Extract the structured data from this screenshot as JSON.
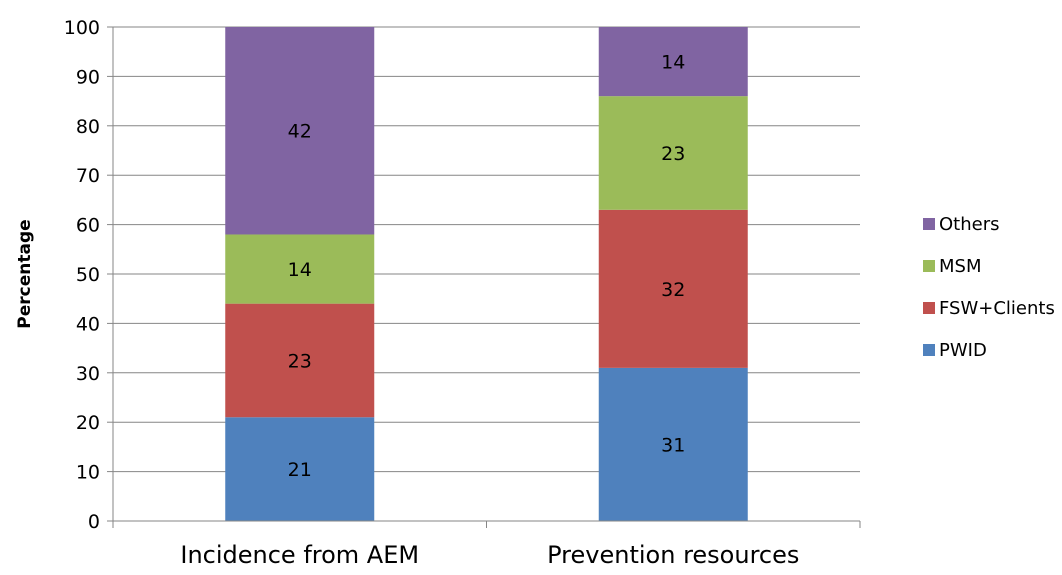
{
  "chart_data": {
    "type": "bar",
    "stacked": true,
    "categories": [
      "Incidence from AEM",
      "Prevention resources"
    ],
    "series": [
      {
        "name": "PWID",
        "color": "#4f81bd",
        "values": [
          21,
          31
        ]
      },
      {
        "name": "FSW+Clients",
        "color": "#c0504d",
        "values": [
          23,
          32
        ]
      },
      {
        "name": "MSM",
        "color": "#9bbb59",
        "values": [
          14,
          23
        ]
      },
      {
        "name": "Others",
        "color": "#8064a2",
        "values": [
          42,
          14
        ]
      }
    ],
    "ylabel": "Percentage",
    "xlabel": "",
    "ylim": [
      0,
      100
    ],
    "yticks": [
      "0",
      "10",
      "20",
      "30",
      "40",
      "50",
      "60",
      "70",
      "80",
      "90",
      "100"
    ],
    "grid": true,
    "legend_position": "right",
    "legend_order": [
      "Others",
      "MSM",
      "FSW+Clients",
      "PWID"
    ]
  }
}
